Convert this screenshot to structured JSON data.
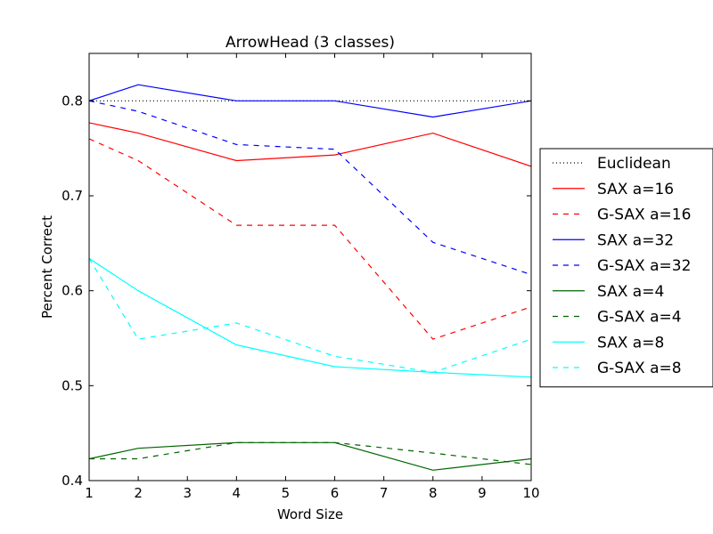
{
  "chart_data": {
    "type": "line",
    "title": "ArrowHead (3 classes)",
    "xlabel": "Word Size",
    "ylabel": "Percent Correct",
    "xlim": [
      1,
      10
    ],
    "ylim": [
      0.4,
      0.85
    ],
    "xticks": [
      1,
      2,
      3,
      4,
      5,
      6,
      7,
      8,
      9,
      10
    ],
    "yticks": [
      0.4,
      0.5,
      0.6,
      0.7,
      0.8
    ],
    "ytick_labels": [
      "0.4",
      "0.5",
      "0.6",
      "0.7",
      "0.8"
    ],
    "x": [
      1,
      2,
      4,
      6,
      8,
      10
    ],
    "grid": false,
    "legend_position": "outside-right",
    "series": [
      {
        "name": "Euclidean",
        "color": "#000000",
        "style": "dotted",
        "values": [
          0.8,
          0.8,
          0.8,
          0.8,
          0.8,
          0.8
        ]
      },
      {
        "name": "SAX a=16",
        "color": "#ff0000",
        "style": "solid",
        "values": [
          0.777,
          0.766,
          0.737,
          0.743,
          0.766,
          0.731
        ]
      },
      {
        "name": "G-SAX a=16",
        "color": "#ff0000",
        "style": "dashed",
        "values": [
          0.76,
          0.737,
          0.669,
          0.669,
          0.549,
          0.583
        ]
      },
      {
        "name": "SAX a=32",
        "color": "#0000ff",
        "style": "solid",
        "values": [
          0.8,
          0.817,
          0.8,
          0.8,
          0.783,
          0.8
        ]
      },
      {
        "name": "G-SAX a=32",
        "color": "#0000ff",
        "style": "dashed",
        "values": [
          0.8,
          0.789,
          0.754,
          0.749,
          0.651,
          0.617
        ]
      },
      {
        "name": "SAX a=4",
        "color": "#006400",
        "style": "solid",
        "values": [
          0.423,
          0.434,
          0.44,
          0.44,
          0.411,
          0.423
        ]
      },
      {
        "name": "G-SAX a=4",
        "color": "#006400",
        "style": "dashed",
        "values": [
          0.423,
          0.423,
          0.44,
          0.44,
          0.429,
          0.417
        ]
      },
      {
        "name": "SAX a=8",
        "color": "#00ffff",
        "style": "solid",
        "values": [
          0.634,
          0.6,
          0.543,
          0.52,
          0.514,
          0.509
        ]
      },
      {
        "name": "G-SAX a=8",
        "color": "#00ffff",
        "style": "dashed",
        "values": [
          0.634,
          0.549,
          0.566,
          0.531,
          0.514,
          0.549
        ]
      }
    ]
  }
}
